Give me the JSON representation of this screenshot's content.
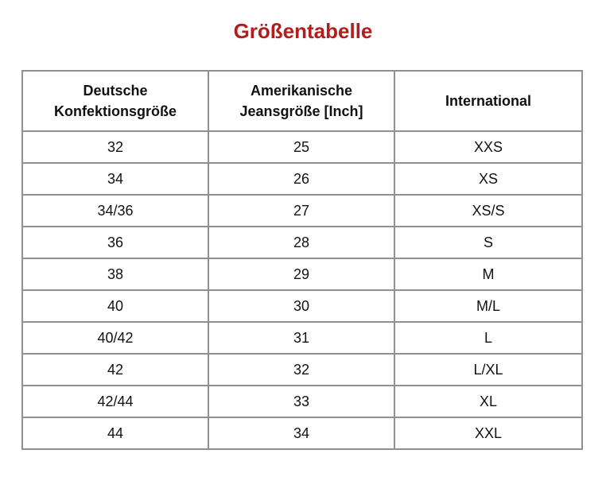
{
  "title": "Größentabelle",
  "colors": {
    "title": "#b01e1e",
    "border": "#8f8f8f",
    "text": "#111111"
  },
  "table": {
    "headers": [
      "Deutsche Konfektionsgröße",
      "Amerikanische Jeansgröße [Inch]",
      "International"
    ],
    "rows": [
      [
        "32",
        "25",
        "XXS"
      ],
      [
        "34",
        "26",
        "XS"
      ],
      [
        "34/36",
        "27",
        "XS/S"
      ],
      [
        "36",
        "28",
        "S"
      ],
      [
        "38",
        "29",
        "M"
      ],
      [
        "40",
        "30",
        "M/L"
      ],
      [
        "40/42",
        "31",
        "L"
      ],
      [
        "42",
        "32",
        "L/XL"
      ],
      [
        "42/44",
        "33",
        "XL"
      ],
      [
        "44",
        "34",
        "XXL"
      ]
    ]
  }
}
